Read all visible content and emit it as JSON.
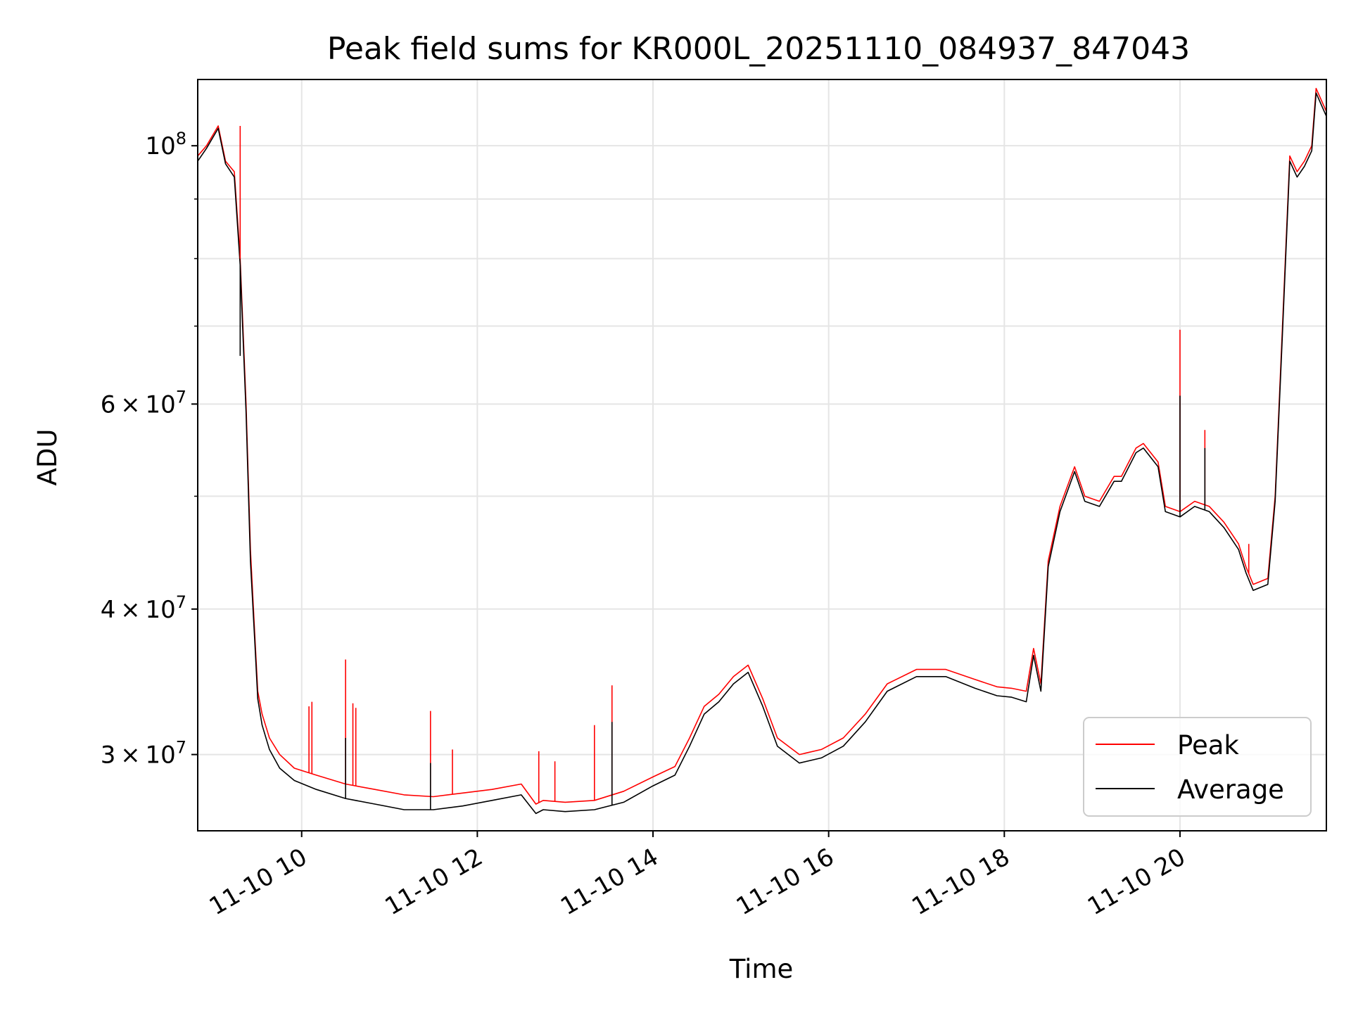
{
  "chart_data": {
    "type": "line",
    "title": "Peak field sums for KR000L_20251110_084937_847043",
    "xlabel": "Time",
    "ylabel": "ADU",
    "yscale": "log",
    "xlim": [
      "2025-11-10 08:49",
      "2025-11-10 21:40"
    ],
    "ylim": [
      25800000,
      114000000
    ],
    "grid": true,
    "legend_position": "lower-right",
    "x_ticks": [
      {
        "value": "2025-11-10 10:00",
        "label": "11-10 10"
      },
      {
        "value": "2025-11-10 12:00",
        "label": "11-10 12"
      },
      {
        "value": "2025-11-10 14:00",
        "label": "11-10 14"
      },
      {
        "value": "2025-11-10 16:00",
        "label": "11-10 16"
      },
      {
        "value": "2025-11-10 18:00",
        "label": "11-10 18"
      },
      {
        "value": "2025-11-10 20:00",
        "label": "11-10 20"
      }
    ],
    "y_major_ticks": [
      {
        "value": 30000000,
        "label_mantissa": "3",
        "label_base": "10",
        "label_exp": "7"
      },
      {
        "value": 40000000,
        "label_mantissa": "4",
        "label_base": "10",
        "label_exp": "7"
      },
      {
        "value": 60000000,
        "label_mantissa": "6",
        "label_base": "10",
        "label_exp": "7"
      },
      {
        "value": 100000000,
        "label_mantissa": "",
        "label_base": "10",
        "label_exp": "8"
      }
    ],
    "y_minor_ticks": [
      50000000,
      70000000,
      80000000,
      90000000
    ],
    "series": [
      {
        "name": "Peak",
        "color": "#ff0000",
        "x": [
          "2025-11-10 08:49",
          "2025-11-10 08:55",
          "2025-11-10 09:03",
          "2025-11-10 09:08",
          "2025-11-10 09:14",
          "2025-11-10 09:18",
          "2025-11-10 09:22",
          "2025-11-10 09:25",
          "2025-11-10 09:28",
          "2025-11-10 09:30",
          "2025-11-10 09:33",
          "2025-11-10 09:38",
          "2025-11-10 09:45",
          "2025-11-10 09:55",
          "2025-11-10 10:10",
          "2025-11-10 10:30",
          "2025-11-10 10:50",
          "2025-11-10 11:10",
          "2025-11-10 11:30",
          "2025-11-10 11:50",
          "2025-11-10 12:10",
          "2025-11-10 12:30",
          "2025-11-10 12:40",
          "2025-11-10 12:45",
          "2025-11-10 13:00",
          "2025-11-10 13:20",
          "2025-11-10 13:40",
          "2025-11-10 14:00",
          "2025-11-10 14:15",
          "2025-11-10 14:25",
          "2025-11-10 14:35",
          "2025-11-10 14:45",
          "2025-11-10 14:55",
          "2025-11-10 15:05",
          "2025-11-10 15:15",
          "2025-11-10 15:25",
          "2025-11-10 15:40",
          "2025-11-10 15:55",
          "2025-11-10 16:10",
          "2025-11-10 16:25",
          "2025-11-10 16:40",
          "2025-11-10 17:00",
          "2025-11-10 17:20",
          "2025-11-10 17:40",
          "2025-11-10 17:55",
          "2025-11-10 18:05",
          "2025-11-10 18:15",
          "2025-11-10 18:20",
          "2025-11-10 18:25",
          "2025-11-10 18:30",
          "2025-11-10 18:38",
          "2025-11-10 18:48",
          "2025-11-10 18:55",
          "2025-11-10 19:05",
          "2025-11-10 19:15",
          "2025-11-10 19:20",
          "2025-11-10 19:30",
          "2025-11-10 19:35",
          "2025-11-10 19:45",
          "2025-11-10 19:50",
          "2025-11-10 20:00",
          "2025-11-10 20:10",
          "2025-11-10 20:20",
          "2025-11-10 20:30",
          "2025-11-10 20:40",
          "2025-11-10 20:45",
          "2025-11-10 20:50",
          "2025-11-10 21:00",
          "2025-11-10 21:05",
          "2025-11-10 21:10",
          "2025-11-10 21:15",
          "2025-11-10 21:20",
          "2025-11-10 21:25",
          "2025-11-10 21:30",
          "2025-11-10 21:33",
          "2025-11-10 21:40"
        ],
        "y": [
          98000000,
          100000000,
          104000000,
          97000000,
          95000000,
          80000000,
          60000000,
          45000000,
          38000000,
          34000000,
          32500000,
          31000000,
          30000000,
          29200000,
          28800000,
          28300000,
          28000000,
          27700000,
          27600000,
          27800000,
          28000000,
          28300000,
          27200000,
          27400000,
          27300000,
          27400000,
          27900000,
          28700000,
          29300000,
          31000000,
          33000000,
          33800000,
          35000000,
          35800000,
          33500000,
          31000000,
          30000000,
          30300000,
          31000000,
          32500000,
          34500000,
          35500000,
          35500000,
          34800000,
          34300000,
          34200000,
          34000000,
          37000000,
          34500000,
          44000000,
          49000000,
          53000000,
          50000000,
          49500000,
          52000000,
          52000000,
          55000000,
          55500000,
          53500000,
          49000000,
          48500000,
          49500000,
          49000000,
          47500000,
          45500000,
          43500000,
          42000000,
          42500000,
          50000000,
          70000000,
          98000000,
          95000000,
          97000000,
          100000000,
          112000000,
          107000000
        ]
      },
      {
        "name": "Average",
        "color": "#000000",
        "x": [
          "2025-11-10 08:49",
          "2025-11-10 08:55",
          "2025-11-10 09:03",
          "2025-11-10 09:08",
          "2025-11-10 09:14",
          "2025-11-10 09:18",
          "2025-11-10 09:22",
          "2025-11-10 09:25",
          "2025-11-10 09:28",
          "2025-11-10 09:30",
          "2025-11-10 09:33",
          "2025-11-10 09:38",
          "2025-11-10 09:45",
          "2025-11-10 09:55",
          "2025-11-10 10:10",
          "2025-11-10 10:30",
          "2025-11-10 10:50",
          "2025-11-10 11:10",
          "2025-11-10 11:30",
          "2025-11-10 11:50",
          "2025-11-10 12:10",
          "2025-11-10 12:30",
          "2025-11-10 12:40",
          "2025-11-10 12:45",
          "2025-11-10 13:00",
          "2025-11-10 13:20",
          "2025-11-10 13:40",
          "2025-11-10 14:00",
          "2025-11-10 14:15",
          "2025-11-10 14:25",
          "2025-11-10 14:35",
          "2025-11-10 14:45",
          "2025-11-10 14:55",
          "2025-11-10 15:05",
          "2025-11-10 15:15",
          "2025-11-10 15:25",
          "2025-11-10 15:40",
          "2025-11-10 15:55",
          "2025-11-10 16:10",
          "2025-11-10 16:25",
          "2025-11-10 16:40",
          "2025-11-10 17:00",
          "2025-11-10 17:20",
          "2025-11-10 17:40",
          "2025-11-10 17:55",
          "2025-11-10 18:05",
          "2025-11-10 18:15",
          "2025-11-10 18:20",
          "2025-11-10 18:25",
          "2025-11-10 18:30",
          "2025-11-10 18:38",
          "2025-11-10 18:48",
          "2025-11-10 18:55",
          "2025-11-10 19:05",
          "2025-11-10 19:15",
          "2025-11-10 19:20",
          "2025-11-10 19:30",
          "2025-11-10 19:35",
          "2025-11-10 19:45",
          "2025-11-10 19:50",
          "2025-11-10 20:00",
          "2025-11-10 20:10",
          "2025-11-10 20:20",
          "2025-11-10 20:30",
          "2025-11-10 20:40",
          "2025-11-10 20:45",
          "2025-11-10 20:50",
          "2025-11-10 21:00",
          "2025-11-10 21:05",
          "2025-11-10 21:10",
          "2025-11-10 21:15",
          "2025-11-10 21:20",
          "2025-11-10 21:25",
          "2025-11-10 21:30",
          "2025-11-10 21:33",
          "2025-11-10 21:40"
        ],
        "y": [
          97000000,
          99500000,
          103500000,
          96500000,
          94000000,
          79000000,
          59000000,
          44000000,
          37500000,
          33500000,
          31800000,
          30300000,
          29200000,
          28500000,
          28000000,
          27500000,
          27200000,
          26900000,
          26900000,
          27100000,
          27400000,
          27700000,
          26700000,
          26900000,
          26800000,
          26900000,
          27300000,
          28200000,
          28800000,
          30500000,
          32500000,
          33300000,
          34500000,
          35300000,
          33000000,
          30500000,
          29500000,
          29800000,
          30500000,
          32000000,
          34000000,
          35000000,
          35000000,
          34200000,
          33700000,
          33600000,
          33300000,
          36500000,
          34000000,
          43500000,
          48500000,
          52500000,
          49500000,
          49000000,
          51500000,
          51500000,
          54500000,
          55000000,
          53000000,
          48500000,
          48000000,
          49000000,
          48500000,
          47000000,
          45000000,
          43000000,
          41500000,
          42000000,
          49500000,
          69000000,
          97000000,
          94000000,
          96000000,
          99000000,
          111000000,
          106000000
        ]
      }
    ],
    "spikes": [
      {
        "series": "Peak",
        "x": "2025-11-10 09:18",
        "y": 104000000
      },
      {
        "series": "Peak",
        "x": "2025-11-10 10:05",
        "y": 33000000
      },
      {
        "series": "Peak",
        "x": "2025-11-10 10:07",
        "y": 33300000
      },
      {
        "series": "Peak",
        "x": "2025-11-10 10:30",
        "y": 36200000
      },
      {
        "series": "Peak",
        "x": "2025-11-10 10:35",
        "y": 33200000
      },
      {
        "series": "Peak",
        "x": "2025-11-10 10:37",
        "y": 32900000
      },
      {
        "series": "Peak",
        "x": "2025-11-10 11:28",
        "y": 32700000
      },
      {
        "series": "Peak",
        "x": "2025-11-10 11:43",
        "y": 30300000
      },
      {
        "series": "Peak",
        "x": "2025-11-10 12:42",
        "y": 30200000
      },
      {
        "series": "Peak",
        "x": "2025-11-10 12:53",
        "y": 29600000
      },
      {
        "series": "Peak",
        "x": "2025-11-10 13:20",
        "y": 31800000
      },
      {
        "series": "Peak",
        "x": "2025-11-10 13:32",
        "y": 34400000
      },
      {
        "series": "Peak",
        "x": "2025-11-10 20:00",
        "y": 69500000
      },
      {
        "series": "Peak",
        "x": "2025-11-10 20:17",
        "y": 57000000
      },
      {
        "series": "Peak",
        "x": "2025-11-10 20:47",
        "y": 45500000
      },
      {
        "series": "Average",
        "x": "2025-11-10 09:18",
        "y": 66000000
      },
      {
        "series": "Average",
        "x": "2025-11-10 10:30",
        "y": 31000000
      },
      {
        "series": "Average",
        "x": "2025-11-10 11:28",
        "y": 29500000
      },
      {
        "series": "Average",
        "x": "2025-11-10 13:32",
        "y": 32000000
      },
      {
        "series": "Average",
        "x": "2025-11-10 20:00",
        "y": 61000000
      },
      {
        "series": "Average",
        "x": "2025-11-10 20:17",
        "y": 55000000
      }
    ]
  }
}
